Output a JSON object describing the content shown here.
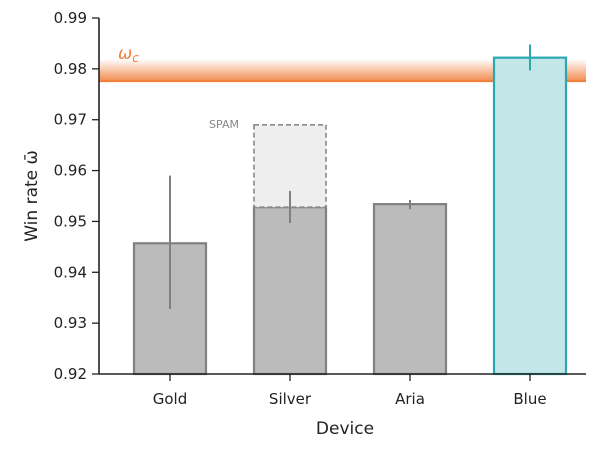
{
  "chart_data": {
    "type": "bar",
    "xlabel": "Device",
    "ylabel": "Win rate ω̄",
    "ylim": [
      0.92,
      0.99
    ],
    "yticks": [
      "0.92",
      "0.93",
      "0.94",
      "0.95",
      "0.96",
      "0.97",
      "0.98",
      "0.99"
    ],
    "categories": [
      "Gold",
      "Silver",
      "Aria",
      "Blue"
    ],
    "values": [
      0.9457,
      0.9528,
      0.9534,
      0.9822
    ],
    "error_low": [
      0.9328,
      0.9497,
      0.9524,
      0.9797
    ],
    "error_high": [
      0.959,
      0.956,
      0.9542,
      0.9848
    ],
    "bar_colors": [
      "#bbbbbb",
      "#bbbbbb",
      "#bbbbbb",
      "#c3e6e8"
    ],
    "bar_edge_colors": [
      "#808080",
      "#808080",
      "#808080",
      "#2aa8b2"
    ],
    "error_colors": [
      "#808080",
      "#808080",
      "#808080",
      "#2aa8b2"
    ],
    "spam_bar": {
      "category": "Silver",
      "low": 0.9528,
      "high": 0.969,
      "label": "SPAM",
      "color": "#eeeeee",
      "edge_color": "#888888"
    },
    "threshold": {
      "value": 0.9776,
      "label": "ωc",
      "color": "#f07f3c"
    },
    "grid": false,
    "legend": "none"
  }
}
